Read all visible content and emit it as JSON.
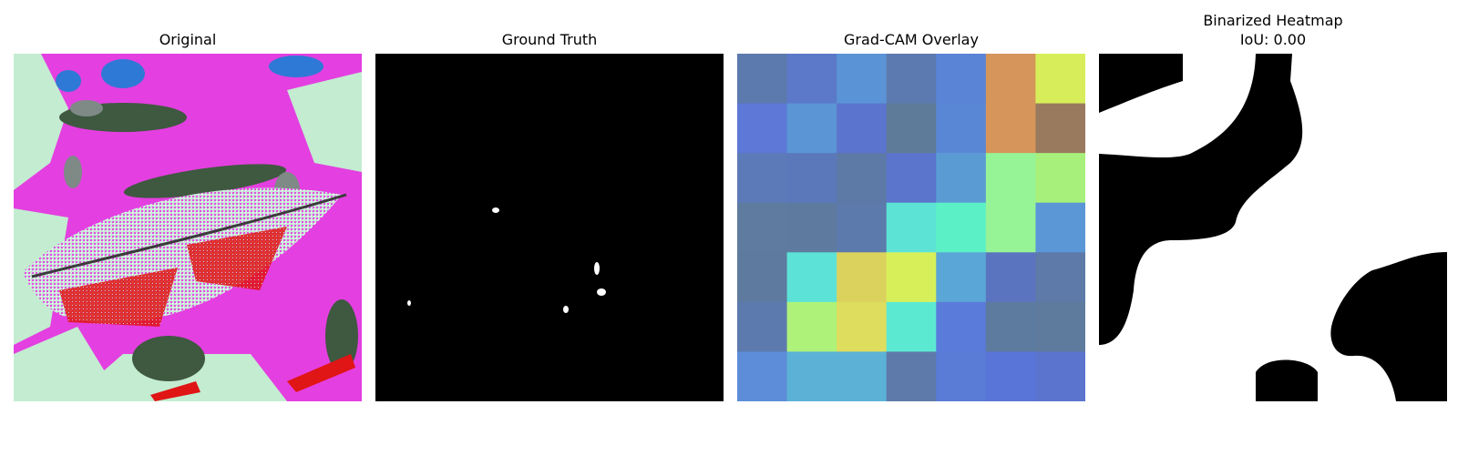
{
  "panels": [
    {
      "title": "Original"
    },
    {
      "title": "Ground Truth"
    },
    {
      "title": "Grad-CAM Overlay"
    },
    {
      "title": "Binarized Heatmap",
      "subtitle": "IoU: 0.00"
    }
  ],
  "gradcam": {
    "cells": [
      [
        "#5d7aae",
        "#5b79c8",
        "#5b94d6",
        "#5d7ab0",
        "#5a84d6",
        "#d6955a",
        "#d7ee5a"
      ],
      [
        "#5d78d6",
        "#5b95d6",
        "#5b74ce",
        "#5e7b99",
        "#5a86d6",
        "#d6955a",
        "#9a7a5e"
      ],
      [
        "#5d7ab8",
        "#5b78bb",
        "#5d7aa6",
        "#5b74cc",
        "#5a9bd4",
        "#96f497",
        "#a7f07b"
      ],
      [
        "#5f7b9f",
        "#5e7b9f",
        "#5c7aab",
        "#5ce3d6",
        "#5cf0c6",
        "#96f497",
        "#5b96d6"
      ],
      [
        "#5e7b9f",
        "#5ce2d6",
        "#dbd25e",
        "#d7f05a",
        "#5aa6d6",
        "#5b74c0",
        "#5d7aa8"
      ],
      [
        "#5d7aae",
        "#aef27a",
        "#dedd5e",
        "#5ce9d2",
        "#5a7bda",
        "#5d7b9e",
        "#5e7b9d"
      ],
      [
        "#5d8cd8",
        "#5bb2d6",
        "#5bb2d6",
        "#5e7aaa",
        "#5a7bd6",
        "#5a75d8",
        "#5b74cd"
      ]
    ]
  },
  "colors": {
    "magenta": "#e43fe0",
    "mint": "#c3ecd1",
    "leaf_pink": "#d765e6",
    "red": "#e01515",
    "dark_green": "#3f5840",
    "blue": "#2f79d6",
    "gray": "#7f8a87",
    "black": "#000000",
    "white": "#ffffff"
  }
}
